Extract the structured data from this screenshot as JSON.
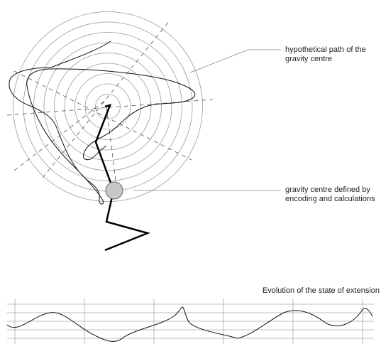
{
  "labels": {
    "hypothetical_path": "hypothetical path of the gravity centre",
    "gravity_centre": "gravity centre defined by encoding and calculations",
    "evolution": "Evolution of the state of extension"
  },
  "colors": {
    "background": "#ffffff",
    "circles": "#9a9a9a",
    "dashed_axes": "#555555",
    "thin_path": "#111111",
    "thick_path": "#000000",
    "gravity_marker_fill": "#c8c8c8",
    "gravity_marker_stroke": "#666666",
    "leader_lines": "#888888",
    "graph_lines": "#aaaaaa"
  },
  "diagram": {
    "concentric_circle_count": 9,
    "marker": "gravity-centre-circle"
  },
  "evolution_graph": {
    "horizontal_line_count": 5,
    "vertical_tick_count": 6
  }
}
